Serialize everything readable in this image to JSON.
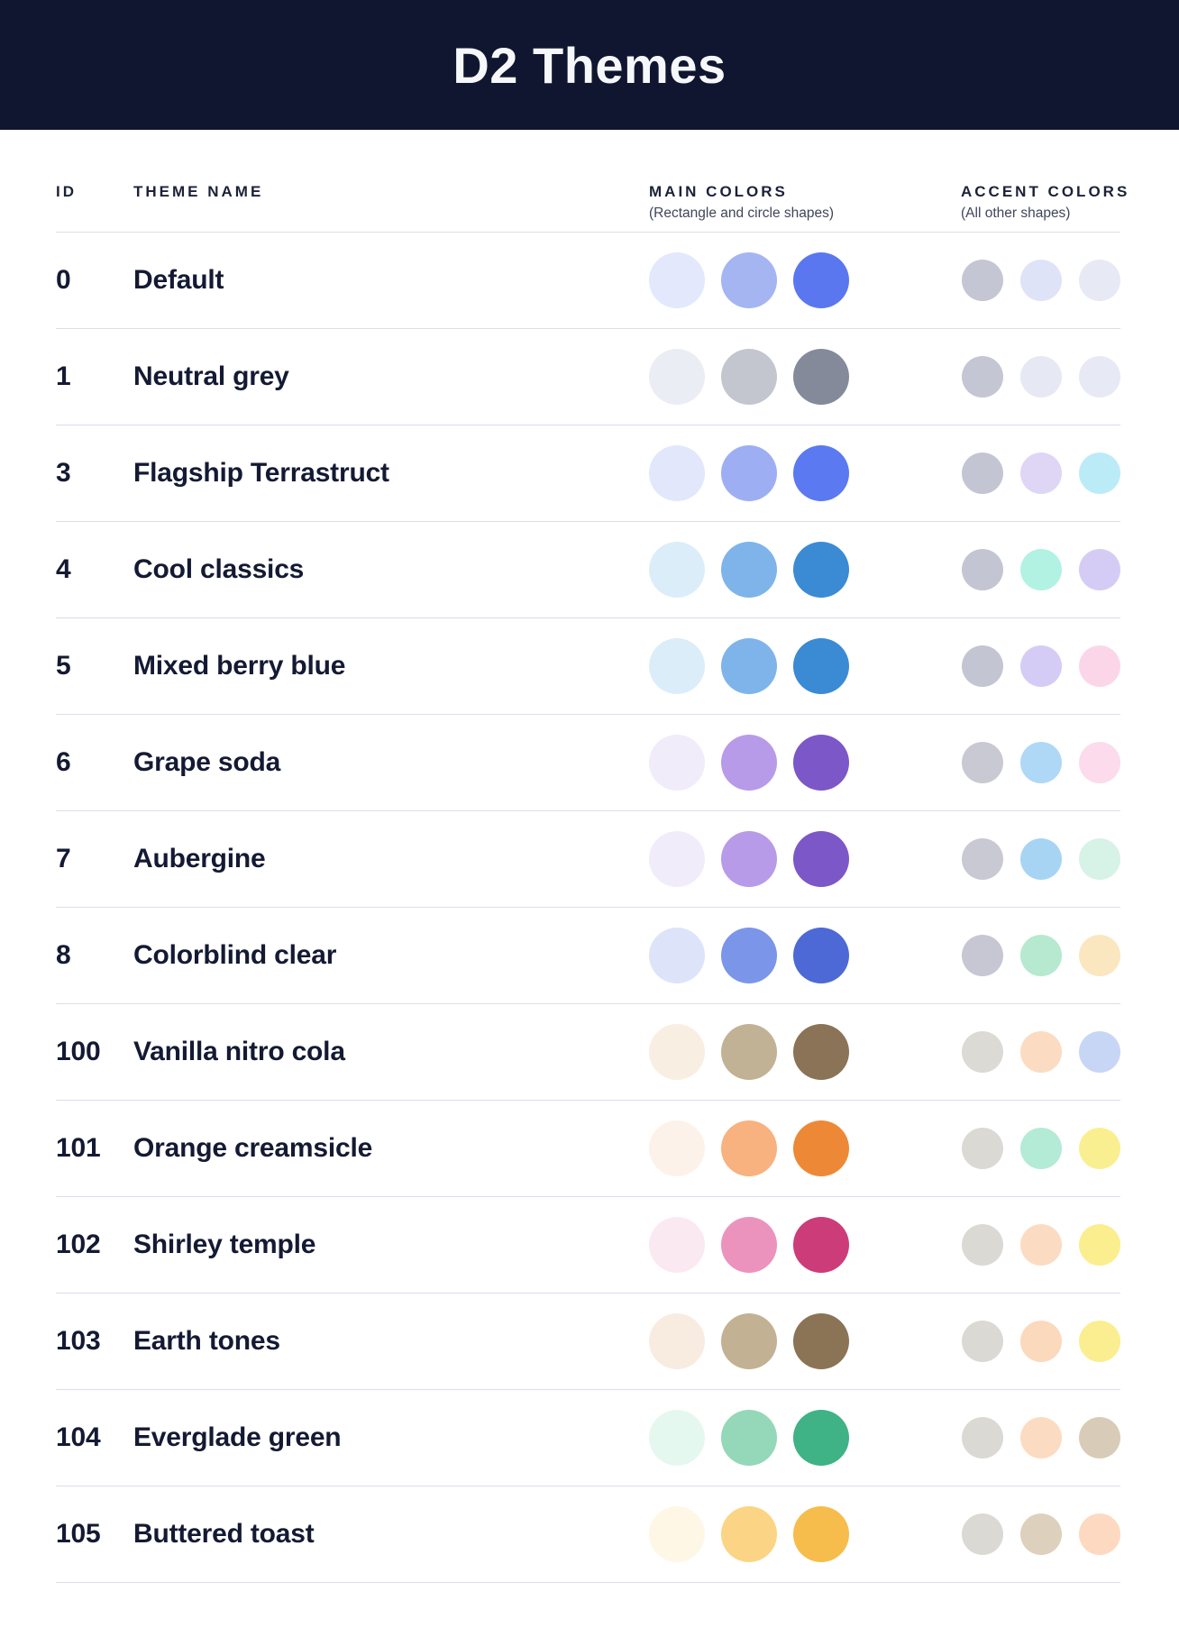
{
  "title": "D2 Themes",
  "columns": {
    "id": "ID",
    "theme_name": "THEME NAME",
    "main": "MAIN COLORS",
    "main_sub": "(Rectangle and circle shapes)",
    "accent": "ACCENT COLORS",
    "accent_sub": "(All other shapes)"
  },
  "colors": {
    "header_bg": "#101630",
    "header_text": "#F6F7FB",
    "heading_text": "#1B2237",
    "subtitle_text": "#3F4659",
    "row_text": "#141A33",
    "divider": "#DBDEEA",
    "page_bg": "#FFFFFF"
  },
  "themes": [
    {
      "id": "0",
      "name": "Default",
      "main": [
        "#E3E8FC",
        "#A4B5F2",
        "#5A77F0"
      ],
      "accent": [
        "#C5C6D3",
        "#DFE3F8",
        "#E7EAF4"
      ]
    },
    {
      "id": "1",
      "name": "Neutral grey",
      "main": [
        "#EBEDF4",
        "#C3C6CF",
        "#858A9B"
      ],
      "accent": [
        "#C5C6D3",
        "#E6E9F3",
        "#E7EAF4"
      ]
    },
    {
      "id": "3",
      "name": "Flagship Terrastruct",
      "main": [
        "#E2E7FC",
        "#9DAFF2",
        "#5B79F0"
      ],
      "accent": [
        "#C3C5D3",
        "#DFD6F6",
        "#BCEBF8"
      ]
    },
    {
      "id": "4",
      "name": "Cool classics",
      "main": [
        "#DCEDFA",
        "#7EB4E9",
        "#3B8AD4"
      ],
      "accent": [
        "#C3C5D3",
        "#B2F2E3",
        "#D5CCF6"
      ]
    },
    {
      "id": "5",
      "name": "Mixed berry blue",
      "main": [
        "#DCEDFA",
        "#7EB4E9",
        "#3B8AD4"
      ],
      "accent": [
        "#C3C5D3",
        "#D5CCF6",
        "#FBD6E9"
      ]
    },
    {
      "id": "6",
      "name": "Grape soda",
      "main": [
        "#F0ECFA",
        "#B79BE8",
        "#7C57C8"
      ],
      "accent": [
        "#C8C9D2",
        "#AFD8F7",
        "#FBDBEC"
      ]
    },
    {
      "id": "7",
      "name": "Aubergine",
      "main": [
        "#F0ECFA",
        "#B79BE8",
        "#7C57C8"
      ],
      "accent": [
        "#C8C9D2",
        "#A8D4F4",
        "#D7F2E6"
      ]
    },
    {
      "id": "8",
      "name": "Colorblind clear",
      "main": [
        "#DDE4FA",
        "#7B95E8",
        "#4C69D5"
      ],
      "accent": [
        "#C6C7D3",
        "#B6E9CF",
        "#FAE7C0"
      ]
    },
    {
      "id": "100",
      "name": "Vanilla nitro cola",
      "main": [
        "#F8EEE2",
        "#C2B295",
        "#8A7356"
      ],
      "accent": [
        "#DBDAD5",
        "#FBDCC2",
        "#C8D6F6"
      ]
    },
    {
      "id": "101",
      "name": "Orange creamsicle",
      "main": [
        "#FDF2E9",
        "#F7B27F",
        "#ED8936"
      ],
      "accent": [
        "#DBD9D4",
        "#B3EBD6",
        "#FAEF90"
      ]
    },
    {
      "id": "102",
      "name": "Shirley temple",
      "main": [
        "#FBE9F1",
        "#EB93BD",
        "#CC3C79"
      ],
      "accent": [
        "#DBD9D4",
        "#FBDCC3",
        "#FAEE8E"
      ]
    },
    {
      "id": "103",
      "name": "Earth tones",
      "main": [
        "#F8ECE0",
        "#C3B194",
        "#8B7355"
      ],
      "accent": [
        "#DBD9D4",
        "#FBD9BD",
        "#FAEE90"
      ]
    },
    {
      "id": "104",
      "name": "Everglade green",
      "main": [
        "#E5F8EF",
        "#94D8B9",
        "#3FB286"
      ],
      "accent": [
        "#DBD9D4",
        "#FBDCC3",
        "#D8CCB8"
      ]
    },
    {
      "id": "105",
      "name": "Buttered toast",
      "main": [
        "#FEF7E5",
        "#FBD585",
        "#F6BD4C"
      ],
      "accent": [
        "#DBD9D3",
        "#DDD1BD",
        "#FCD9C0"
      ]
    }
  ]
}
